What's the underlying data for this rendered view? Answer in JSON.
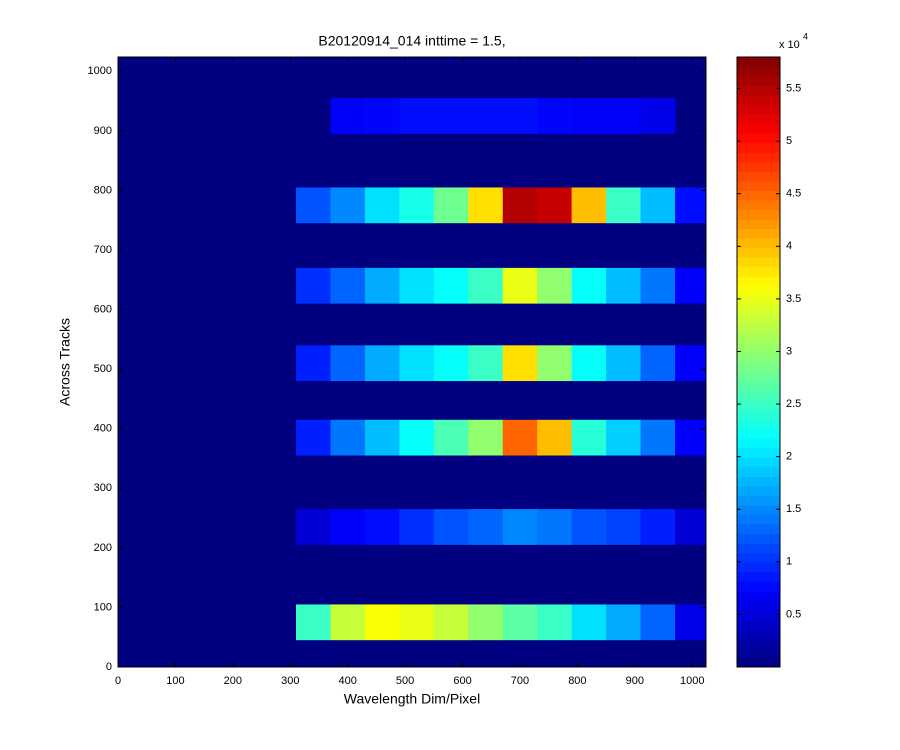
{
  "chart_data": {
    "type": "heatmap",
    "title": "B20120914_014 inttime = 1.5,",
    "x_label": "Wavelength Dim/Pixel",
    "y_label": "Across Tracks",
    "xlim": [
      0,
      1024
    ],
    "ylim": [
      0,
      1024
    ],
    "xticks": [
      0,
      100,
      200,
      300,
      400,
      500,
      600,
      700,
      800,
      900,
      1000
    ],
    "yticks": [
      0,
      100,
      200,
      300,
      400,
      500,
      600,
      700,
      800,
      900,
      1000
    ],
    "background": 0,
    "cell_width": 60,
    "row_height": 60,
    "x": [
      340,
      400,
      460,
      520,
      580,
      640,
      700,
      760,
      820,
      880,
      940,
      1000
    ],
    "rows": [
      {
        "y": 925,
        "values": [
          null,
          7000,
          7500,
          8000,
          8000,
          8000,
          8000,
          7500,
          7000,
          7000,
          6000,
          null
        ]
      },
      {
        "y": 775,
        "values": [
          12000,
          15000,
          20000,
          23000,
          28000,
          38000,
          55000,
          54000,
          40000,
          25000,
          18000,
          8000
        ]
      },
      {
        "y": 640,
        "values": [
          10000,
          13000,
          17000,
          20000,
          22000,
          25000,
          35000,
          30000,
          22000,
          18000,
          14000,
          7000
        ]
      },
      {
        "y": 510,
        "values": [
          9000,
          13000,
          17000,
          20000,
          22000,
          25000,
          38000,
          30000,
          22000,
          18000,
          13000,
          7000
        ]
      },
      {
        "y": 385,
        "values": [
          9000,
          14000,
          18000,
          22000,
          26000,
          30000,
          45000,
          40000,
          24000,
          19000,
          14000,
          7000
        ]
      },
      {
        "y": 235,
        "values": [
          5000,
          7000,
          8000,
          10000,
          12000,
          13000,
          15000,
          14000,
          12000,
          11000,
          9000,
          5000
        ]
      },
      {
        "y": 75,
        "values": [
          25000,
          33000,
          36000,
          35000,
          33000,
          30000,
          27000,
          25000,
          20000,
          17000,
          13000,
          6000
        ]
      }
    ],
    "colormap": "jet",
    "clim": [
      0,
      58000
    ],
    "colorbar": {
      "multiplier": "x 10",
      "exponent": "4",
      "ticks": [
        {
          "value": 5000,
          "label": "0.5"
        },
        {
          "value": 10000,
          "label": "1"
        },
        {
          "value": 15000,
          "label": "1.5"
        },
        {
          "value": 20000,
          "label": "2"
        },
        {
          "value": 25000,
          "label": "2.5"
        },
        {
          "value": 30000,
          "label": "3"
        },
        {
          "value": 35000,
          "label": "3.5"
        },
        {
          "value": 40000,
          "label": "4"
        },
        {
          "value": 45000,
          "label": "4.5"
        },
        {
          "value": 50000,
          "label": "5"
        },
        {
          "value": 55000,
          "label": "5.5"
        }
      ]
    }
  }
}
